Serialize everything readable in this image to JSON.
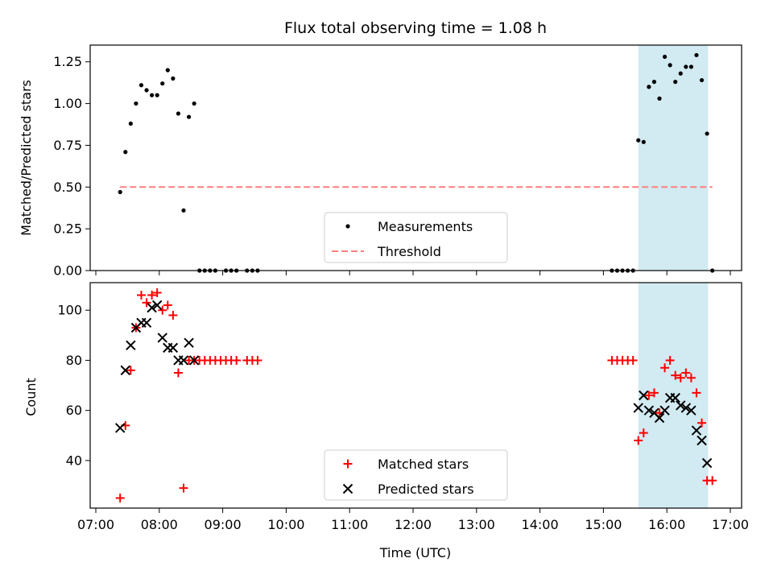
{
  "chart_data": [
    {
      "type": "scatter",
      "title": "Flux total observing time = 1.08 h",
      "xlabel": "",
      "ylabel": "Matched/Predicted stars",
      "xlim": [
        "07:00",
        "17:00"
      ],
      "ylim": [
        0,
        1.35
      ],
      "yticks": [
        "0.00",
        "0.25",
        "0.50",
        "0.75",
        "1.00",
        "1.25"
      ],
      "shaded_region": {
        "x_start": "15:33",
        "x_end": "16:39",
        "color": "#add8e6"
      },
      "legend": {
        "position": "lower center",
        "entries": [
          "Measurements",
          "Threshold"
        ]
      },
      "series": [
        {
          "name": "Measurements",
          "marker": "dot",
          "color": "#000000",
          "points": [
            [
              "07:23",
              0.47
            ],
            [
              "07:28",
              0.71
            ],
            [
              "07:33",
              0.88
            ],
            [
              "07:38",
              1.0
            ],
            [
              "07:43",
              1.11
            ],
            [
              "07:48",
              1.08
            ],
            [
              "07:53",
              1.05
            ],
            [
              "07:58",
              1.05
            ],
            [
              "08:03",
              1.12
            ],
            [
              "08:08",
              1.2
            ],
            [
              "08:13",
              1.15
            ],
            [
              "08:18",
              0.94
            ],
            [
              "08:23",
              0.36
            ],
            [
              "08:28",
              0.92
            ],
            [
              "08:33",
              1.0
            ],
            [
              "08:38",
              0.0
            ],
            [
              "08:43",
              0.0
            ],
            [
              "08:48",
              0.0
            ],
            [
              "08:53",
              0.0
            ],
            [
              "09:03",
              0.0
            ],
            [
              "09:08",
              0.0
            ],
            [
              "09:13",
              0.0
            ],
            [
              "09:23",
              0.0
            ],
            [
              "09:28",
              0.0
            ],
            [
              "09:33",
              0.0
            ],
            [
              "15:08",
              0.0
            ],
            [
              "15:13",
              0.0
            ],
            [
              "15:18",
              0.0
            ],
            [
              "15:23",
              0.0
            ],
            [
              "15:28",
              0.0
            ],
            [
              "15:33",
              0.78
            ],
            [
              "15:38",
              0.77
            ],
            [
              "15:43",
              1.1
            ],
            [
              "15:48",
              1.13
            ],
            [
              "15:53",
              1.03
            ],
            [
              "15:58",
              1.28
            ],
            [
              "16:03",
              1.23
            ],
            [
              "16:08",
              1.13
            ],
            [
              "16:13",
              1.18
            ],
            [
              "16:18",
              1.22
            ],
            [
              "16:23",
              1.22
            ],
            [
              "16:28",
              1.29
            ],
            [
              "16:33",
              1.14
            ],
            [
              "16:38",
              0.82
            ],
            [
              "16:43",
              0.0
            ]
          ]
        },
        {
          "name": "Threshold",
          "style": "dashed",
          "color": "#ff7f7f",
          "points": [
            [
              "07:23",
              0.5
            ],
            [
              "16:43",
              0.5
            ]
          ]
        }
      ]
    },
    {
      "type": "scatter",
      "title": "",
      "xlabel": "Time (UTC)",
      "ylabel": "Count",
      "xlim": [
        "07:00",
        "17:00"
      ],
      "ylim": [
        21,
        111
      ],
      "yticks": [
        "40",
        "60",
        "80",
        "100"
      ],
      "xticks": [
        "07:00",
        "08:00",
        "09:00",
        "10:00",
        "11:00",
        "12:00",
        "13:00",
        "14:00",
        "15:00",
        "16:00",
        "17:00"
      ],
      "shaded_region": {
        "x_start": "15:33",
        "x_end": "16:39",
        "color": "#add8e6"
      },
      "legend": {
        "position": "lower center",
        "entries": [
          "Matched stars",
          "Predicted stars"
        ]
      },
      "series": [
        {
          "name": "Matched stars",
          "marker": "plus",
          "color": "#ff0000",
          "points": [
            [
              "07:23",
              25
            ],
            [
              "07:28",
              54
            ],
            [
              "07:33",
              76
            ],
            [
              "07:38",
              93
            ],
            [
              "07:43",
              106
            ],
            [
              "07:48",
              103
            ],
            [
              "07:53",
              106
            ],
            [
              "07:58",
              107
            ],
            [
              "08:03",
              100
            ],
            [
              "08:08",
              102
            ],
            [
              "08:13",
              98
            ],
            [
              "08:18",
              75
            ],
            [
              "08:23",
              29
            ],
            [
              "08:28",
              80
            ],
            [
              "08:33",
              80
            ],
            [
              "08:38",
              80
            ],
            [
              "08:43",
              80
            ],
            [
              "08:48",
              80
            ],
            [
              "08:53",
              80
            ],
            [
              "08:58",
              80
            ],
            [
              "09:03",
              80
            ],
            [
              "09:08",
              80
            ],
            [
              "09:13",
              80
            ],
            [
              "09:23",
              80
            ],
            [
              "09:28",
              80
            ],
            [
              "09:33",
              80
            ],
            [
              "15:08",
              80
            ],
            [
              "15:13",
              80
            ],
            [
              "15:18",
              80
            ],
            [
              "15:23",
              80
            ],
            [
              "15:28",
              80
            ],
            [
              "15:33",
              48
            ],
            [
              "15:38",
              51
            ],
            [
              "15:43",
              66
            ],
            [
              "15:48",
              67
            ],
            [
              "15:53",
              59
            ],
            [
              "15:58",
              77
            ],
            [
              "16:03",
              80
            ],
            [
              "16:08",
              74
            ],
            [
              "16:13",
              73
            ],
            [
              "16:18",
              75
            ],
            [
              "16:23",
              73
            ],
            [
              "16:28",
              67
            ],
            [
              "16:33",
              55
            ],
            [
              "16:38",
              32
            ],
            [
              "16:43",
              32
            ]
          ]
        },
        {
          "name": "Predicted stars",
          "marker": "x",
          "color": "#000000",
          "points": [
            [
              "07:23",
              53
            ],
            [
              "07:28",
              76
            ],
            [
              "07:33",
              86
            ],
            [
              "07:38",
              93
            ],
            [
              "07:43",
              95
            ],
            [
              "07:48",
              95
            ],
            [
              "07:53",
              101
            ],
            [
              "07:58",
              102
            ],
            [
              "08:03",
              89
            ],
            [
              "08:08",
              85
            ],
            [
              "08:13",
              85
            ],
            [
              "08:18",
              80
            ],
            [
              "08:23",
              80
            ],
            [
              "08:28",
              87
            ],
            [
              "08:33",
              80
            ],
            [
              "15:33",
              61
            ],
            [
              "15:38",
              66
            ],
            [
              "15:43",
              60
            ],
            [
              "15:48",
              59
            ],
            [
              "15:53",
              57
            ],
            [
              "15:58",
              60
            ],
            [
              "16:03",
              65
            ],
            [
              "16:08",
              65
            ],
            [
              "16:13",
              62
            ],
            [
              "16:18",
              61
            ],
            [
              "16:23",
              60
            ],
            [
              "16:28",
              52
            ],
            [
              "16:33",
              48
            ],
            [
              "16:38",
              39
            ]
          ]
        }
      ]
    }
  ]
}
